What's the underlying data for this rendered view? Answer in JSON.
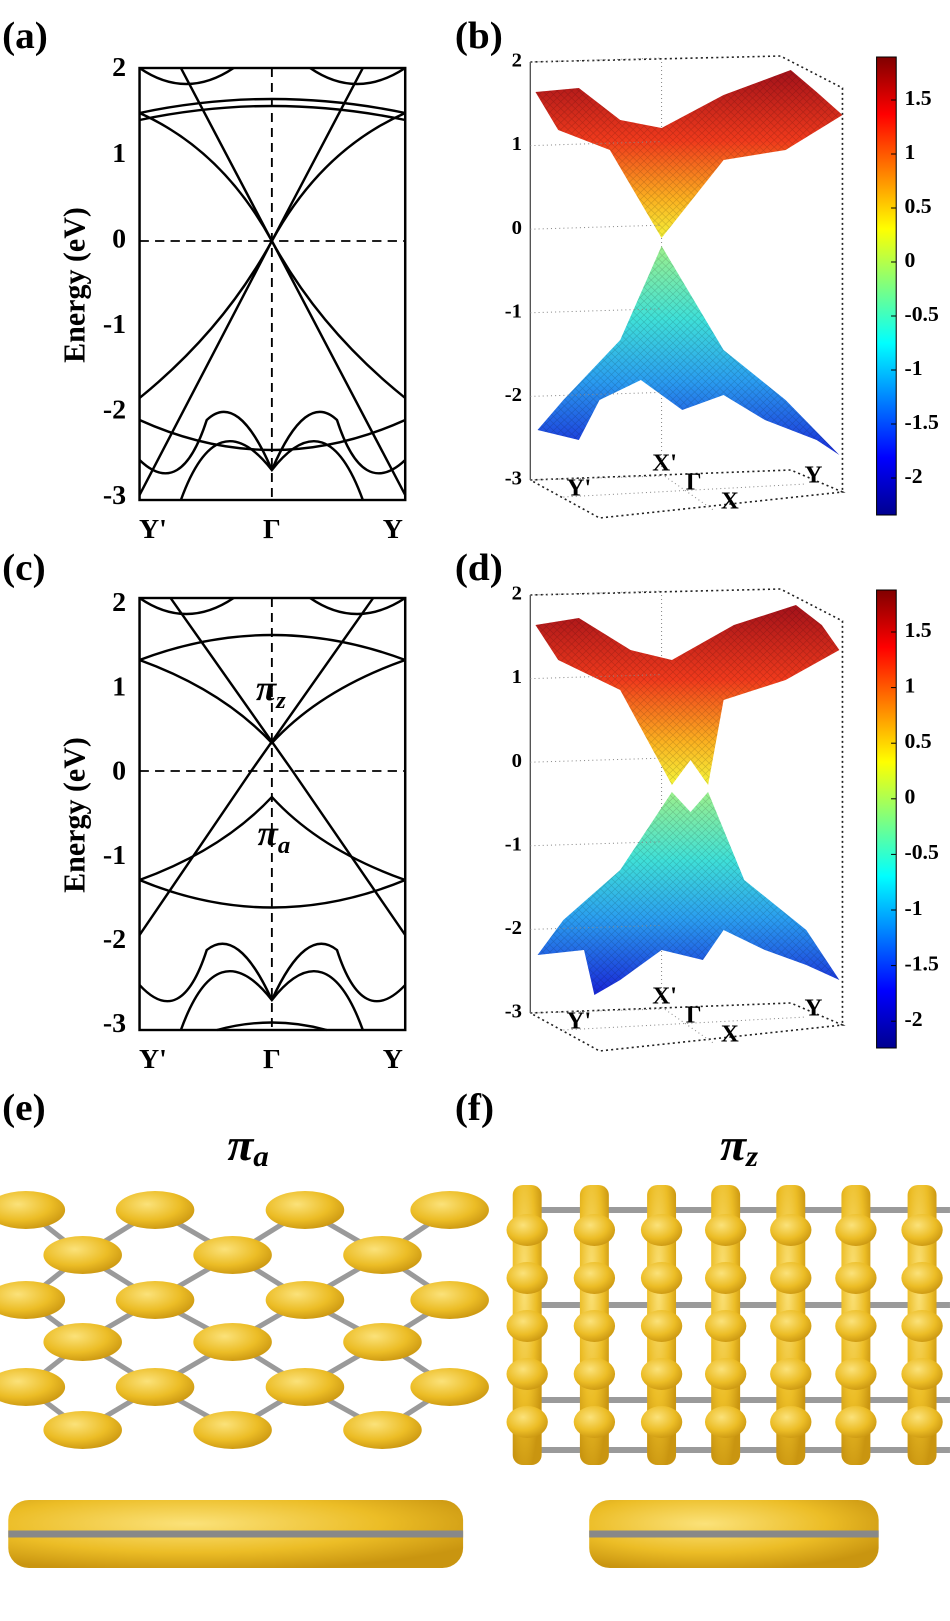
{
  "panels": {
    "a": {
      "label": "(a)",
      "y_label": "Energy (eV)",
      "y_ticks": [
        "2",
        "1",
        "0",
        "-1",
        "-2",
        "-3"
      ],
      "k_points": [
        "Y'",
        "Γ",
        "Y"
      ]
    },
    "b": {
      "label": "(b)",
      "z_ticks": [
        "2",
        "1",
        "0",
        "-1",
        "-2",
        "-3"
      ],
      "k_points": [
        "X'",
        "Y'",
        "Γ",
        "X",
        "Y"
      ],
      "colorbar_ticks": [
        "1.5",
        "1",
        "0.5",
        "0",
        "-0.5",
        "-1",
        "-1.5",
        "-2"
      ]
    },
    "c": {
      "label": "(c)",
      "y_label": "Energy (eV)",
      "y_ticks": [
        "2",
        "1",
        "0",
        "-1",
        "-2",
        "-3"
      ],
      "k_points": [
        "Y'",
        "Γ",
        "Y"
      ],
      "annotations": [
        {
          "symbol": "π",
          "subscript": "z"
        },
        {
          "symbol": "π",
          "subscript": "a"
        }
      ]
    },
    "d": {
      "label": "(d)",
      "z_ticks": [
        "2",
        "1",
        "0",
        "-1",
        "-2",
        "-3"
      ],
      "k_points": [
        "X'",
        "Y'",
        "Γ",
        "X",
        "Y"
      ],
      "colorbar_ticks": [
        "1.5",
        "1",
        "0.5",
        "0",
        "-0.5",
        "-1",
        "-1.5",
        "-2"
      ]
    },
    "e": {
      "label": "(e)",
      "title": {
        "symbol": "π",
        "subscript": "a"
      }
    },
    "f": {
      "label": "(f)",
      "title": {
        "symbol": "π",
        "subscript": "z"
      }
    }
  }
}
